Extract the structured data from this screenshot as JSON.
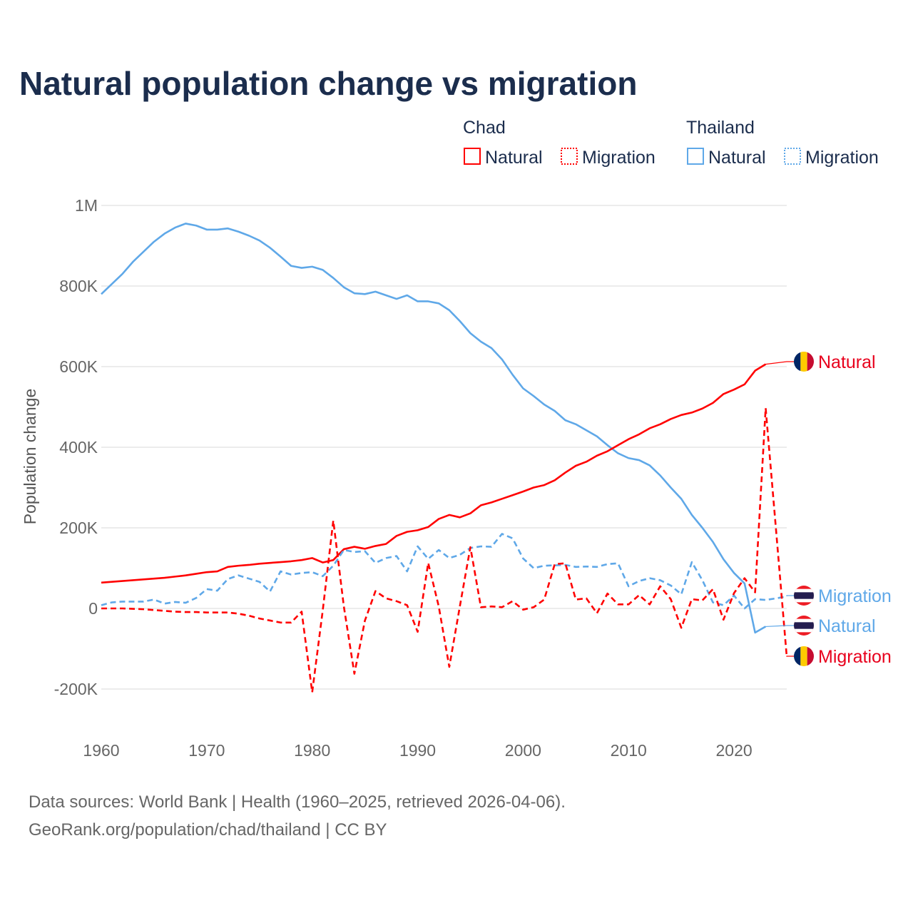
{
  "title": "Natural population change vs migration",
  "legend": {
    "groups": [
      {
        "country": "Chad",
        "items": [
          "Natural",
          "Migration"
        ]
      },
      {
        "country": "Thailand",
        "items": [
          "Natural",
          "Migration"
        ]
      }
    ]
  },
  "footer": {
    "line1": "Data sources: World Bank | Health (1960–2025, retrieved 2026-04-06).",
    "line2": "GeoRank.org/population/chad/thailand | CC BY"
  },
  "colors": {
    "chad": "#ff0000",
    "thailand": "#5fa8e8",
    "title": "#1b2d4d"
  },
  "chart_data": {
    "type": "line",
    "title": "Natural population change vs migration",
    "xlabel": "",
    "ylabel": "Population change",
    "xlim": [
      1960,
      2025
    ],
    "ylim": [
      -200000,
      1000000
    ],
    "yticks": [
      {
        "v": -200000,
        "label": "-200K"
      },
      {
        "v": 0,
        "label": "0"
      },
      {
        "v": 200000,
        "label": "200K"
      },
      {
        "v": 400000,
        "label": "400K"
      },
      {
        "v": 600000,
        "label": "600K"
      },
      {
        "v": 800000,
        "label": "800K"
      },
      {
        "v": 1000000,
        "label": "1M"
      }
    ],
    "xticks": [
      {
        "v": 1960,
        "label": "1960"
      },
      {
        "v": 1970,
        "label": "1970"
      },
      {
        "v": 1980,
        "label": "1980"
      },
      {
        "v": 1990,
        "label": "1990"
      },
      {
        "v": 2000,
        "label": "2000"
      },
      {
        "v": 2010,
        "label": "2010"
      },
      {
        "v": 2020,
        "label": "2020"
      }
    ],
    "grid": true,
    "legend_position": "top-right",
    "x_start": 1960,
    "series": [
      {
        "name": "Thailand Natural",
        "country": "Thailand",
        "kind": "Natural",
        "color": "#5fa8e8",
        "dash": false,
        "end_label": "Natural",
        "values_k": [
          780,
          805,
          830,
          860,
          885,
          910,
          930,
          945,
          955,
          950,
          940,
          940,
          943,
          935,
          925,
          913,
          895,
          873,
          850,
          845,
          848,
          840,
          820,
          797,
          782,
          780,
          786,
          777,
          768,
          777,
          762,
          762,
          757,
          740,
          713,
          683,
          662,
          646,
          618,
          580,
          546,
          527,
          506,
          490,
          467,
          457,
          442,
          427,
          405,
          385,
          373,
          368,
          355,
          330,
          300,
          272,
          232,
          200,
          165,
          122,
          88,
          62,
          -60,
          -45
        ]
      },
      {
        "name": "Chad Natural",
        "country": "Chad",
        "kind": "Natural",
        "color": "#ff0000",
        "dash": false,
        "end_label": "Natural",
        "values_k": [
          64,
          66,
          68,
          70,
          72,
          74,
          76,
          79,
          82,
          86,
          90,
          92,
          103,
          106,
          108,
          111,
          113,
          115,
          117,
          120,
          125,
          114,
          120,
          147,
          153,
          148,
          155,
          160,
          180,
          190,
          194,
          202,
          222,
          232,
          226,
          236,
          256,
          263,
          272,
          281,
          290,
          300,
          306,
          318,
          337,
          354,
          364,
          379,
          390,
          405,
          420,
          432,
          447,
          457,
          470,
          480,
          486,
          496,
          510,
          532,
          543,
          556,
          590,
          606
        ]
      },
      {
        "name": "Thailand Migration",
        "country": "Thailand",
        "kind": "Migration",
        "color": "#5fa8e8",
        "dash": true,
        "end_label": "Migration",
        "values_k": [
          8,
          15,
          17,
          17,
          17,
          22,
          12,
          16,
          14,
          26,
          48,
          44,
          73,
          82,
          74,
          66,
          42,
          92,
          84,
          88,
          90,
          80,
          106,
          145,
          140,
          142,
          113,
          125,
          130,
          92,
          154,
          123,
          145,
          125,
          133,
          150,
          154,
          153,
          185,
          174,
          124,
          100,
          106,
          107,
          108,
          103,
          104,
          103,
          110,
          112,
          55,
          68,
          75,
          70,
          57,
          35,
          115,
          70,
          15,
          8,
          32,
          0,
          23,
          21,
          25,
          30
        ]
      },
      {
        "name": "Chad Migration",
        "country": "Chad",
        "kind": "Migration",
        "color": "#ff0000",
        "dash": true,
        "end_label": "Migration",
        "values_k": [
          0,
          0,
          0,
          -1,
          -2,
          -4,
          -6,
          -8,
          -9,
          -9,
          -10,
          -10,
          -10,
          -13,
          -18,
          -25,
          -30,
          -35,
          -35,
          -8,
          -208,
          -5,
          218,
          5,
          -162,
          -30,
          43,
          25,
          18,
          8,
          -58,
          113,
          5,
          -145,
          5,
          152,
          3,
          5,
          3,
          18,
          -3,
          3,
          22,
          110,
          112,
          22,
          25,
          -12,
          37,
          10,
          10,
          33,
          10,
          55,
          23,
          -48,
          23,
          20,
          48,
          -28,
          38,
          75,
          40,
          497,
          190,
          -120
        ]
      }
    ]
  }
}
